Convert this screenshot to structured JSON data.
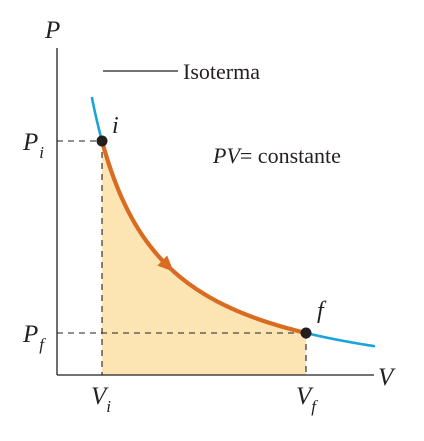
{
  "axes": {
    "y_label": "P",
    "x_label": "V"
  },
  "ticks": {
    "pi_main": "P",
    "pi_sub": "i",
    "pf_main": "P",
    "pf_sub": "f",
    "vi_main": "V",
    "vi_sub": "i",
    "vf_main": "V",
    "vf_sub": "f"
  },
  "points": {
    "initial": "i",
    "final": "f"
  },
  "legend": {
    "isotherm": "Isoterma"
  },
  "equation": {
    "lhs": "PV",
    "rhs": "= constante"
  },
  "colors": {
    "isotherm_curve": "#1ba3dd",
    "process_path": "#d96b22",
    "area_fill": "#fde4b3",
    "points": "#231f20",
    "axes": "#231f20"
  }
}
